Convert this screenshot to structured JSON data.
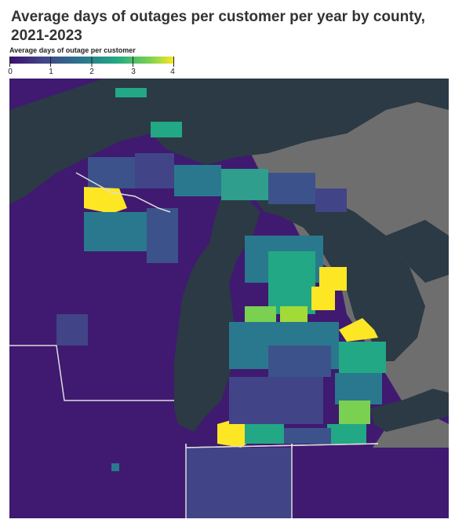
{
  "title": "Average days of outages per customer per year by county, 2021-2023",
  "legend": {
    "title": "Average days of outage per customer",
    "ticks": [
      "0",
      "1",
      "2",
      "3",
      "4"
    ],
    "min": 0,
    "max": 4,
    "colors": [
      "#3b0f70",
      "#414487",
      "#2a788e",
      "#22a884",
      "#7ad151",
      "#fde725"
    ]
  },
  "map": {
    "region": "Great Lakes — Michigan, Wisconsin, Indiana, Ohio",
    "water_color": "#2b3a44",
    "land_outside_color": "#6e6e6e",
    "highlight_counties": [
      {
        "area": "Wisconsin north-west",
        "value": 4.0
      },
      {
        "area": "Michigan north-east Lower Peninsula",
        "value": 4.0
      },
      {
        "area": "Michigan Thumb",
        "value": 4.0
      },
      {
        "area": "Michigan south-west corner",
        "value": 4.0
      },
      {
        "area": "Michigan north-central Lower Peninsula",
        "value": 3.4
      },
      {
        "area": "Michigan south-east",
        "value": 3.2
      }
    ]
  }
}
